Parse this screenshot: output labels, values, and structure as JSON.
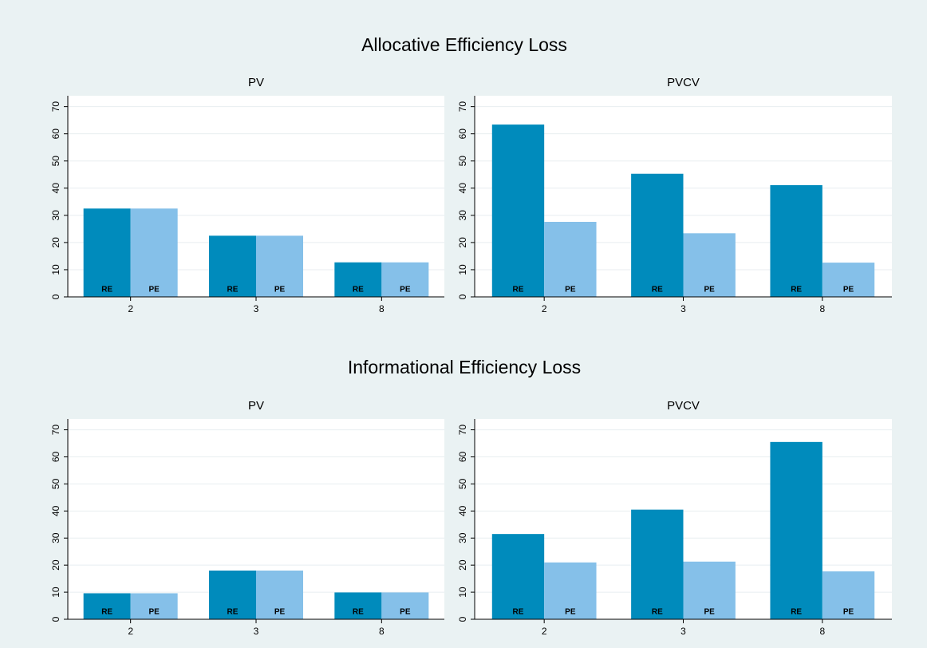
{
  "chart_data": [
    {
      "type": "bar",
      "suptitle": "Allocative Efficiency Loss",
      "title": "PV",
      "categories": [
        "2",
        "3",
        "8"
      ],
      "series": [
        {
          "name": "RE",
          "color": "#008bbc",
          "values": [
            32.5,
            22.5,
            12.7
          ]
        },
        {
          "name": "PE",
          "color": "#85c0e9",
          "values": [
            32.5,
            22.5,
            12.7
          ]
        }
      ],
      "ylim": [
        0,
        74
      ],
      "yticks": [
        0,
        10,
        20,
        30,
        40,
        50,
        60,
        70
      ],
      "grid": true
    },
    {
      "type": "bar",
      "title": "PVCV",
      "categories": [
        "2",
        "3",
        "8"
      ],
      "series": [
        {
          "name": "RE",
          "color": "#008bbc",
          "values": [
            63.4,
            45.3,
            41.1
          ]
        },
        {
          "name": "PE",
          "color": "#85c0e9",
          "values": [
            27.6,
            23.4,
            12.6
          ]
        }
      ],
      "ylim": [
        0,
        74
      ],
      "yticks": [
        0,
        10,
        20,
        30,
        40,
        50,
        60,
        70
      ],
      "grid": true
    },
    {
      "type": "bar",
      "suptitle": "Informational Efficiency Loss",
      "title": "PV",
      "categories": [
        "2",
        "3",
        "8"
      ],
      "series": [
        {
          "name": "RE",
          "color": "#008bbc",
          "values": [
            9.6,
            18,
            9.9
          ]
        },
        {
          "name": "PE",
          "color": "#85c0e9",
          "values": [
            9.6,
            18,
            9.9
          ]
        }
      ],
      "ylim": [
        0,
        74
      ],
      "yticks": [
        0,
        10,
        20,
        30,
        40,
        50,
        60,
        70
      ],
      "grid": true
    },
    {
      "type": "bar",
      "title": "PVCV",
      "categories": [
        "2",
        "3",
        "8"
      ],
      "series": [
        {
          "name": "RE",
          "color": "#008bbc",
          "values": [
            31.5,
            40.5,
            65.5
          ]
        },
        {
          "name": "PE",
          "color": "#85c0e9",
          "values": [
            21,
            21.3,
            17.7
          ]
        }
      ],
      "ylim": [
        0,
        74
      ],
      "yticks": [
        0,
        10,
        20,
        30,
        40,
        50,
        60,
        70
      ],
      "grid": true
    }
  ]
}
